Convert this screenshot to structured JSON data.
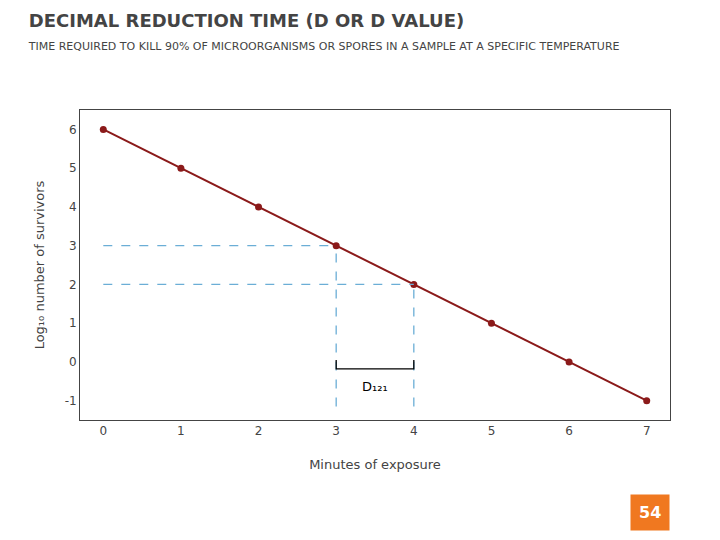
{
  "chart_data": {
    "type": "line",
    "title": "DECIMAL REDUCTION TIME (D OR D VALUE)",
    "subtitle": "TIME REQUIRED TO KILL 90% OF MICROORGANISMS OR SPORES IN A SAMPLE AT A SPECIFIC TEMPERATURE",
    "xlabel": "Minutes of exposure",
    "ylabel": "Log₁₀ number of survivors",
    "series": [
      {
        "x": [
          0,
          1,
          2,
          3,
          4,
          5,
          6,
          7
        ],
        "values": [
          6,
          5,
          4,
          3,
          2,
          1,
          0,
          -1
        ],
        "color": "#8B1A1A",
        "marker": "circle",
        "line_style": "solid"
      },
      {
        "x": [
          0,
          3
        ],
        "values": [
          3,
          3
        ],
        "color": "#6BAED6",
        "line_style": "dashed"
      },
      {
        "x": [
          3,
          3
        ],
        "values": [
          -1.15,
          3
        ],
        "color": "#6BAED6",
        "line_style": "dashed"
      },
      {
        "x": [
          0,
          4
        ],
        "values": [
          2,
          2
        ],
        "color": "#6BAED6",
        "line_style": "dashed"
      },
      {
        "x": [
          4,
          4
        ],
        "values": [
          -1.15,
          2
        ],
        "color": "#6BAED6",
        "line_style": "dashed"
      },
      {
        "x": [
          3,
          3,
          4,
          4
        ],
        "values": [
          0.05,
          -0.18,
          -0.18,
          0.05
        ],
        "color": "#000000",
        "line_style": "solid"
      }
    ],
    "annotations": [
      {
        "text": "D₁₂₁",
        "x": 3.5,
        "y": -0.38
      },
      {
        "text": "54",
        "color": "#F07820"
      }
    ],
    "xlim": [
      -0.3,
      7.3
    ],
    "ylim": [
      -1.5,
      6.5
    ],
    "xticks": [
      0,
      1,
      2,
      3,
      4,
      5,
      6,
      7
    ],
    "yticks": [
      -1,
      0,
      1,
      2,
      3,
      4,
      5,
      6
    ],
    "grid": false
  }
}
